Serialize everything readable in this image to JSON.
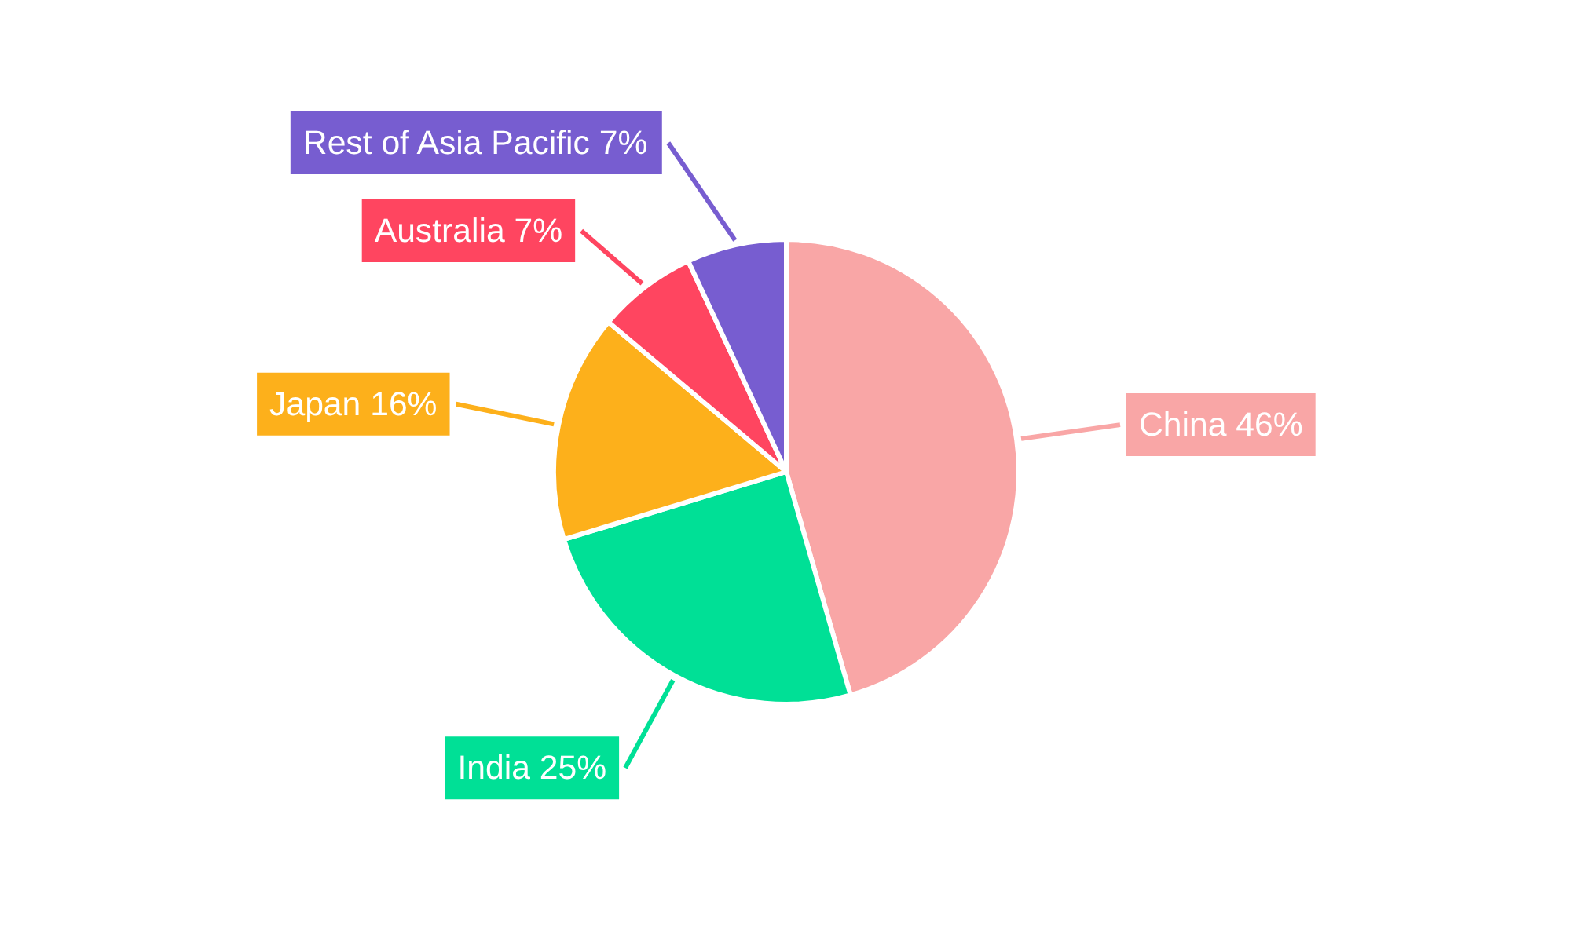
{
  "chart_data": {
    "type": "pie",
    "categories": [
      "China",
      "India",
      "Japan",
      "Australia",
      "Rest of Asia Pacific"
    ],
    "values": [
      46,
      25,
      16,
      7,
      7
    ],
    "value_labels": [
      "46%",
      "25%",
      "16%",
      "7%",
      "7%"
    ],
    "colors": [
      "#f9a6a6",
      "#00e096",
      "#fdb01b",
      "#ff4560",
      "#775dd0"
    ]
  }
}
